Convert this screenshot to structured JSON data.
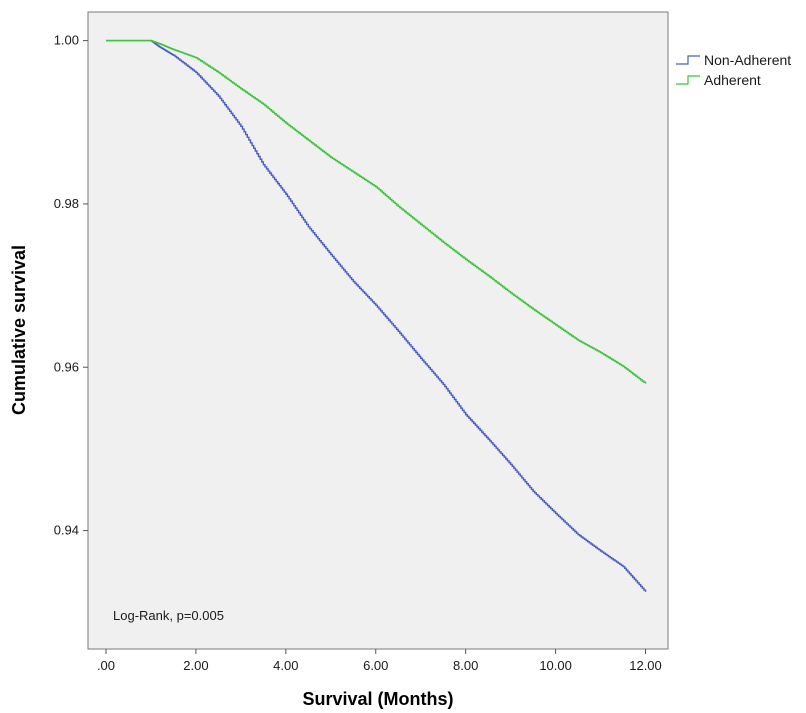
{
  "chart_data": {
    "type": "line",
    "title": "",
    "xlabel": "Survival (Months)",
    "ylabel": "Cumulative survival",
    "xlim": [
      -0.4,
      12.5
    ],
    "ylim": [
      0.9255,
      1.0035
    ],
    "x_ticks": [
      ".00",
      "2.00",
      "4.00",
      "6.00",
      "8.00",
      "10.00",
      "12.00"
    ],
    "x_tick_values": [
      0,
      2,
      4,
      6,
      8,
      10,
      12
    ],
    "y_ticks": [
      "0.94",
      "0.96",
      "0.98",
      "1.00"
    ],
    "y_tick_values": [
      0.94,
      0.96,
      0.98,
      1.0
    ],
    "grid": false,
    "legend_position": "outside-top-right",
    "annotation": "Log-Rank, p=0.005",
    "series": [
      {
        "name": "Non-Adherent",
        "color": "#4a5fc1",
        "x": [
          0,
          1.0,
          1.2,
          1.5,
          2.0,
          2.5,
          3.0,
          3.5,
          4.0,
          4.5,
          5.0,
          5.5,
          6.0,
          6.5,
          7.0,
          7.5,
          8.0,
          8.5,
          9.0,
          9.5,
          10.0,
          10.5,
          11.0,
          11.5,
          12.0
        ],
        "y": [
          1.0,
          1.0,
          0.9992,
          0.9982,
          0.9961,
          0.9932,
          0.9895,
          0.9848,
          0.9812,
          0.9772,
          0.9738,
          0.9705,
          0.9676,
          0.9644,
          0.9611,
          0.9579,
          0.9542,
          0.9512,
          0.9481,
          0.9448,
          0.9421,
          0.9395,
          0.9375,
          0.9356,
          0.9325
        ]
      },
      {
        "name": "Adherent",
        "color": "#3ec43e",
        "x": [
          0,
          1.0,
          1.2,
          1.5,
          2.0,
          2.5,
          3.0,
          3.5,
          4.0,
          4.5,
          5.0,
          5.5,
          6.0,
          6.5,
          7.0,
          7.5,
          8.0,
          8.5,
          9.0,
          9.5,
          10.0,
          10.5,
          11.0,
          11.5,
          12.0
        ],
        "y": [
          1.0,
          1.0,
          0.9996,
          0.9989,
          0.9979,
          0.9961,
          0.9941,
          0.9922,
          0.9899,
          0.9878,
          0.9857,
          0.9839,
          0.9821,
          0.9797,
          0.9775,
          0.9753,
          0.9732,
          0.9712,
          0.9691,
          0.9671,
          0.9652,
          0.9633,
          0.9618,
          0.9601,
          0.958
        ]
      }
    ]
  }
}
